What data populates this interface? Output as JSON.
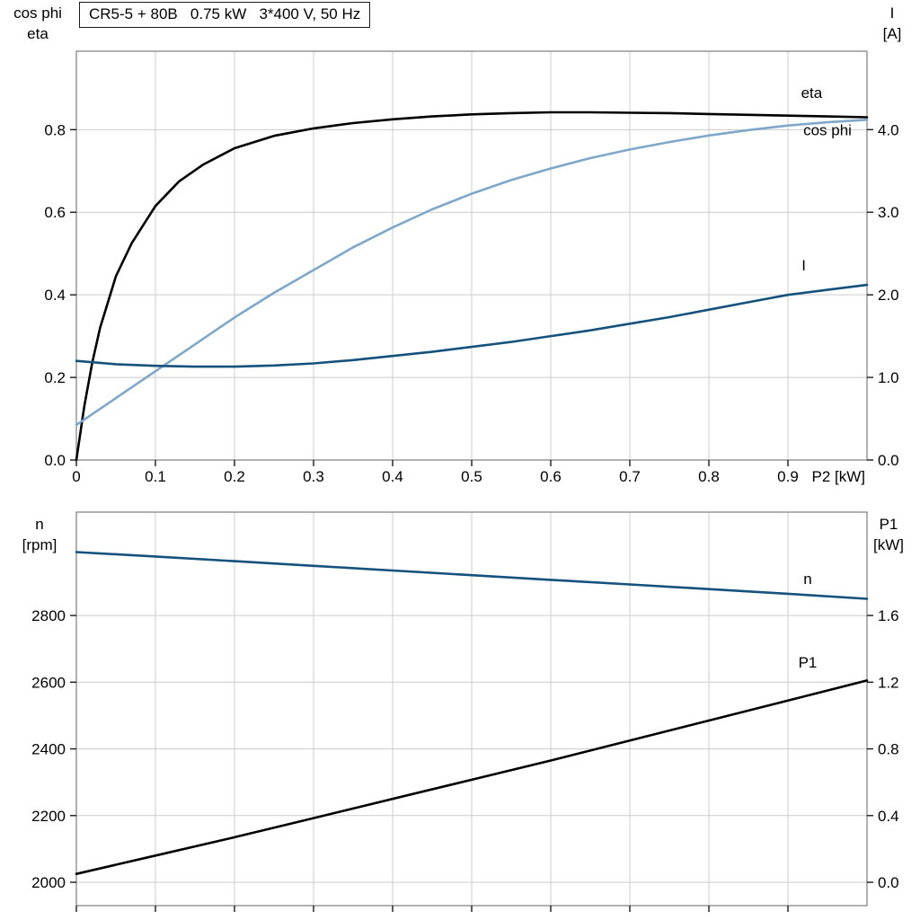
{
  "colors": {
    "grid": "#cccccc",
    "frame": "#7d7d7d",
    "tick": "#1a1a1a"
  },
  "chart_data": [
    {
      "id": "motor-electrical",
      "type": "line",
      "title": "CR5-5 + 80B   0.75 kW   3*400 V, 50 Hz",
      "xlabel": "P2 [kW]",
      "xlim": [
        0,
        1.0
      ],
      "x_grid_step": 0.1,
      "x_ticks": [
        {
          "v": 0,
          "label": "0"
        },
        {
          "v": 0.1,
          "label": "0.1"
        },
        {
          "v": 0.2,
          "label": "0.2"
        },
        {
          "v": 0.3,
          "label": "0.3"
        },
        {
          "v": 0.4,
          "label": "0.4"
        },
        {
          "v": 0.5,
          "label": "0.5"
        },
        {
          "v": 0.6,
          "label": "0.6"
        },
        {
          "v": 0.7,
          "label": "0.7"
        },
        {
          "v": 0.8,
          "label": "0.8"
        },
        {
          "v": 0.9,
          "label": "0.9"
        }
      ],
      "left_axis": {
        "title_lines": [
          "cos phi",
          "eta"
        ],
        "lim": [
          0,
          0.99
        ],
        "grid": [
          0.2,
          0.4,
          0.6,
          0.8
        ],
        "ticks": [
          {
            "v": 0.0,
            "label": "0.0"
          },
          {
            "v": 0.2,
            "label": "0.2"
          },
          {
            "v": 0.4,
            "label": "0.4"
          },
          {
            "v": 0.6,
            "label": "0.6"
          },
          {
            "v": 0.8,
            "label": "0.8"
          }
        ]
      },
      "right_axis": {
        "title_lines": [
          "I",
          "[A]"
        ],
        "lim": [
          0,
          4.95
        ],
        "grid": [],
        "ticks": [
          {
            "v": 0.0,
            "label": "0.0"
          },
          {
            "v": 1.0,
            "label": "1.0"
          },
          {
            "v": 2.0,
            "label": "2.0"
          },
          {
            "v": 3.0,
            "label": "3.0"
          },
          {
            "v": 4.0,
            "label": "4.0"
          }
        ]
      },
      "series": [
        {
          "name": "eta",
          "axis": "left",
          "color": "#000000",
          "label": {
            "x": 0.93,
            "y": 0.89
          },
          "x": [
            0,
            0.01,
            0.02,
            0.03,
            0.05,
            0.07,
            0.1,
            0.13,
            0.16,
            0.2,
            0.25,
            0.3,
            0.35,
            0.4,
            0.45,
            0.5,
            0.55,
            0.6,
            0.65,
            0.7,
            0.75,
            0.8,
            0.85,
            0.9,
            0.95,
            1.0
          ],
          "y": [
            0,
            0.13,
            0.235,
            0.32,
            0.445,
            0.525,
            0.615,
            0.675,
            0.715,
            0.755,
            0.785,
            0.803,
            0.816,
            0.825,
            0.832,
            0.837,
            0.84,
            0.842,
            0.842,
            0.841,
            0.84,
            0.838,
            0.836,
            0.834,
            0.832,
            0.83
          ]
        },
        {
          "name": "cos phi",
          "axis": "left",
          "color": "#7fa7c9",
          "label": {
            "x": 0.95,
            "y": 0.8
          },
          "x": [
            0,
            0.05,
            0.1,
            0.15,
            0.2,
            0.25,
            0.3,
            0.35,
            0.4,
            0.45,
            0.5,
            0.55,
            0.6,
            0.65,
            0.7,
            0.75,
            0.8,
            0.85,
            0.9,
            0.95,
            1.0
          ],
          "y": [
            0.085,
            0.15,
            0.215,
            0.28,
            0.345,
            0.405,
            0.46,
            0.515,
            0.563,
            0.607,
            0.645,
            0.678,
            0.706,
            0.731,
            0.752,
            0.77,
            0.786,
            0.799,
            0.81,
            0.818,
            0.824
          ]
        },
        {
          "name": "I",
          "axis": "right",
          "color": "#14527d",
          "label": {
            "x": 0.92,
            "y": 2.36
          },
          "x": [
            0,
            0.05,
            0.1,
            0.15,
            0.2,
            0.25,
            0.3,
            0.35,
            0.4,
            0.45,
            0.5,
            0.55,
            0.6,
            0.65,
            0.7,
            0.75,
            0.8,
            0.85,
            0.9,
            0.95,
            1.0
          ],
          "y": [
            1.2,
            1.16,
            1.14,
            1.13,
            1.13,
            1.145,
            1.17,
            1.21,
            1.26,
            1.31,
            1.37,
            1.43,
            1.5,
            1.57,
            1.65,
            1.73,
            1.82,
            1.91,
            2.0,
            2.06,
            2.12
          ]
        }
      ]
    },
    {
      "id": "motor-speed-power",
      "type": "line",
      "title": "",
      "xlabel": "",
      "xlim": [
        0,
        1.0
      ],
      "x_grid_step": 0.1,
      "x_ticks": [
        {
          "v": 0,
          "label": ""
        },
        {
          "v": 0.1,
          "label": ""
        },
        {
          "v": 0.2,
          "label": ""
        },
        {
          "v": 0.3,
          "label": ""
        },
        {
          "v": 0.4,
          "label": ""
        },
        {
          "v": 0.5,
          "label": ""
        },
        {
          "v": 0.6,
          "label": ""
        },
        {
          "v": 0.7,
          "label": ""
        },
        {
          "v": 0.8,
          "label": ""
        },
        {
          "v": 0.9,
          "label": ""
        }
      ],
      "left_axis": {
        "title_lines": [
          "n",
          "[rpm]"
        ],
        "lim": [
          1930,
          3110
        ],
        "grid": [
          2000,
          2200,
          2400,
          2600,
          2800
        ],
        "ticks": [
          {
            "v": 2000,
            "label": "2000"
          },
          {
            "v": 2200,
            "label": "2200"
          },
          {
            "v": 2400,
            "label": "2400"
          },
          {
            "v": 2600,
            "label": "2600"
          },
          {
            "v": 2800,
            "label": "2800"
          }
        ]
      },
      "right_axis": {
        "title_lines": [
          "P1",
          "[kW]"
        ],
        "lim": [
          -0.14,
          2.22
        ],
        "grid": [],
        "ticks": [
          {
            "v": 0.0,
            "label": "0.0"
          },
          {
            "v": 0.4,
            "label": "0.4"
          },
          {
            "v": 0.8,
            "label": "0.8"
          },
          {
            "v": 1.2,
            "label": "1.2"
          },
          {
            "v": 1.6,
            "label": "1.6"
          }
        ]
      },
      "series": [
        {
          "name": "n",
          "axis": "left",
          "color": "#14527d",
          "label": {
            "x": 0.925,
            "y": 2910
          },
          "x": [
            0,
            0.1,
            0.2,
            0.3,
            0.4,
            0.5,
            0.6,
            0.7,
            0.8,
            0.9,
            1.0
          ],
          "y": [
            2990,
            2977,
            2963,
            2949,
            2935,
            2921,
            2907,
            2893,
            2879,
            2865,
            2850
          ]
        },
        {
          "name": "P1",
          "axis": "right",
          "color": "#000000",
          "label": {
            "x": 0.925,
            "y": 1.32
          },
          "x": [
            0,
            0.1,
            0.2,
            0.3,
            0.4,
            0.5,
            0.6,
            0.7,
            0.8,
            0.9,
            1.0
          ],
          "y": [
            0.05,
            0.16,
            0.27,
            0.385,
            0.5,
            0.615,
            0.73,
            0.85,
            0.97,
            1.09,
            1.21
          ]
        }
      ]
    }
  ]
}
